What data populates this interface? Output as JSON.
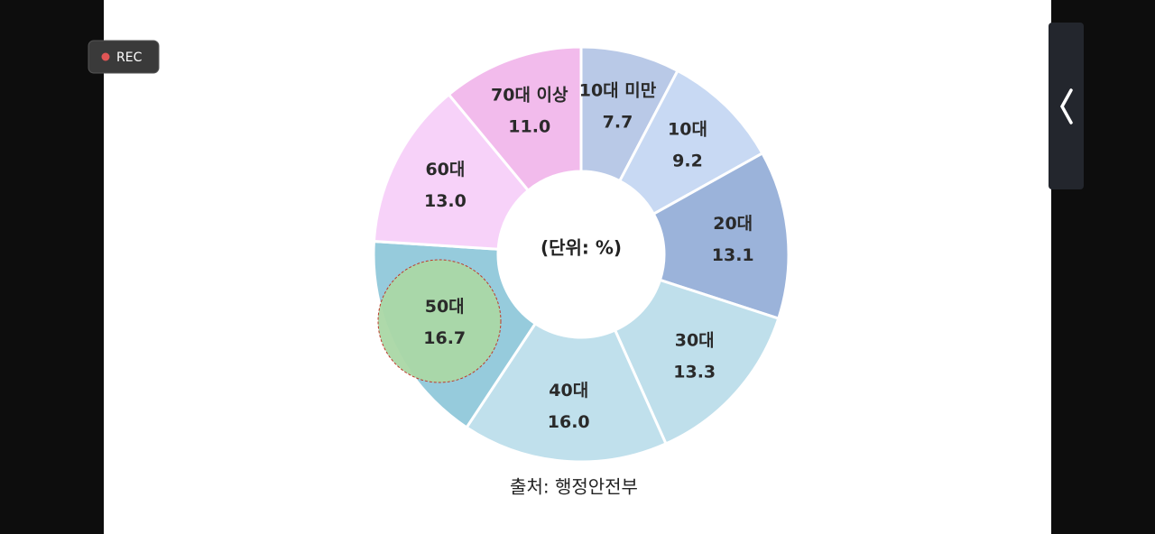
{
  "rec_label": "REC",
  "chart_data": {
    "type": "donut",
    "center_label": "(단위: %)",
    "source": "출처: 행정안전부",
    "categories": [
      "10대 미만",
      "10대",
      "20대",
      "30대",
      "40대",
      "50대",
      "60대",
      "70대 이상"
    ],
    "values": [
      7.7,
      9.2,
      13.1,
      13.3,
      16.0,
      16.7,
      13.0,
      11.0
    ],
    "value_labels": [
      "7.7",
      "9.2",
      "13.1",
      "13.3",
      "16.0",
      "16.7",
      "13.0",
      "11.0"
    ],
    "colors": [
      "#b9c9e7",
      "#c8d9f3",
      "#9bb3da",
      "#bfdfeb",
      "#c0e0ec",
      "#96cbdc",
      "#f7d2f9",
      "#f2bbec"
    ]
  }
}
